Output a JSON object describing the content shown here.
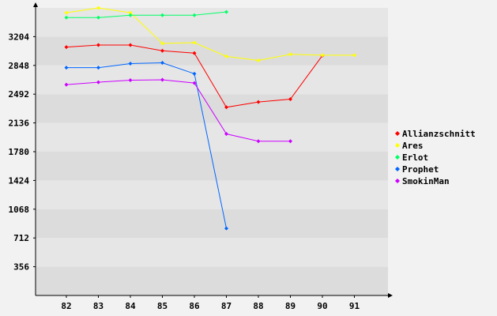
{
  "chart_data": {
    "type": "line",
    "title": "",
    "xlabel": "",
    "ylabel": "",
    "x": [
      82,
      83,
      84,
      85,
      86,
      87,
      88,
      89,
      90,
      91
    ],
    "x_ticks": [
      "82",
      "83",
      "84",
      "85",
      "86",
      "87",
      "88",
      "89",
      "90",
      "91"
    ],
    "y_ticks": [
      356,
      712,
      1068,
      1424,
      1780,
      2136,
      2492,
      2848,
      3204
    ],
    "ylim": [
      0,
      3560
    ],
    "grid": true,
    "legend_position": "right",
    "series": [
      {
        "name": "Allianzschnitt",
        "color": "#ff0000",
        "values": [
          3075,
          3100,
          3100,
          3030,
          3000,
          2330,
          2395,
          2430,
          2970,
          null
        ]
      },
      {
        "name": "Ares",
        "color": "#ffff00",
        "values": [
          3500,
          3560,
          3500,
          3120,
          3130,
          2960,
          2910,
          2985,
          2975,
          2975
        ]
      },
      {
        "name": "Erlot",
        "color": "#00ff66",
        "values": [
          3440,
          3440,
          3470,
          3470,
          3470,
          3510,
          null,
          null,
          null,
          null
        ]
      },
      {
        "name": "Prophet",
        "color": "#0066ff",
        "values": [
          2820,
          2820,
          2870,
          2880,
          2745,
          830,
          null,
          null,
          null,
          null
        ]
      },
      {
        "name": "SmokinMan",
        "color": "#cc00ff",
        "values": [
          2610,
          2640,
          2665,
          2670,
          2630,
          2000,
          1910,
          1910,
          null,
          null
        ]
      }
    ]
  }
}
